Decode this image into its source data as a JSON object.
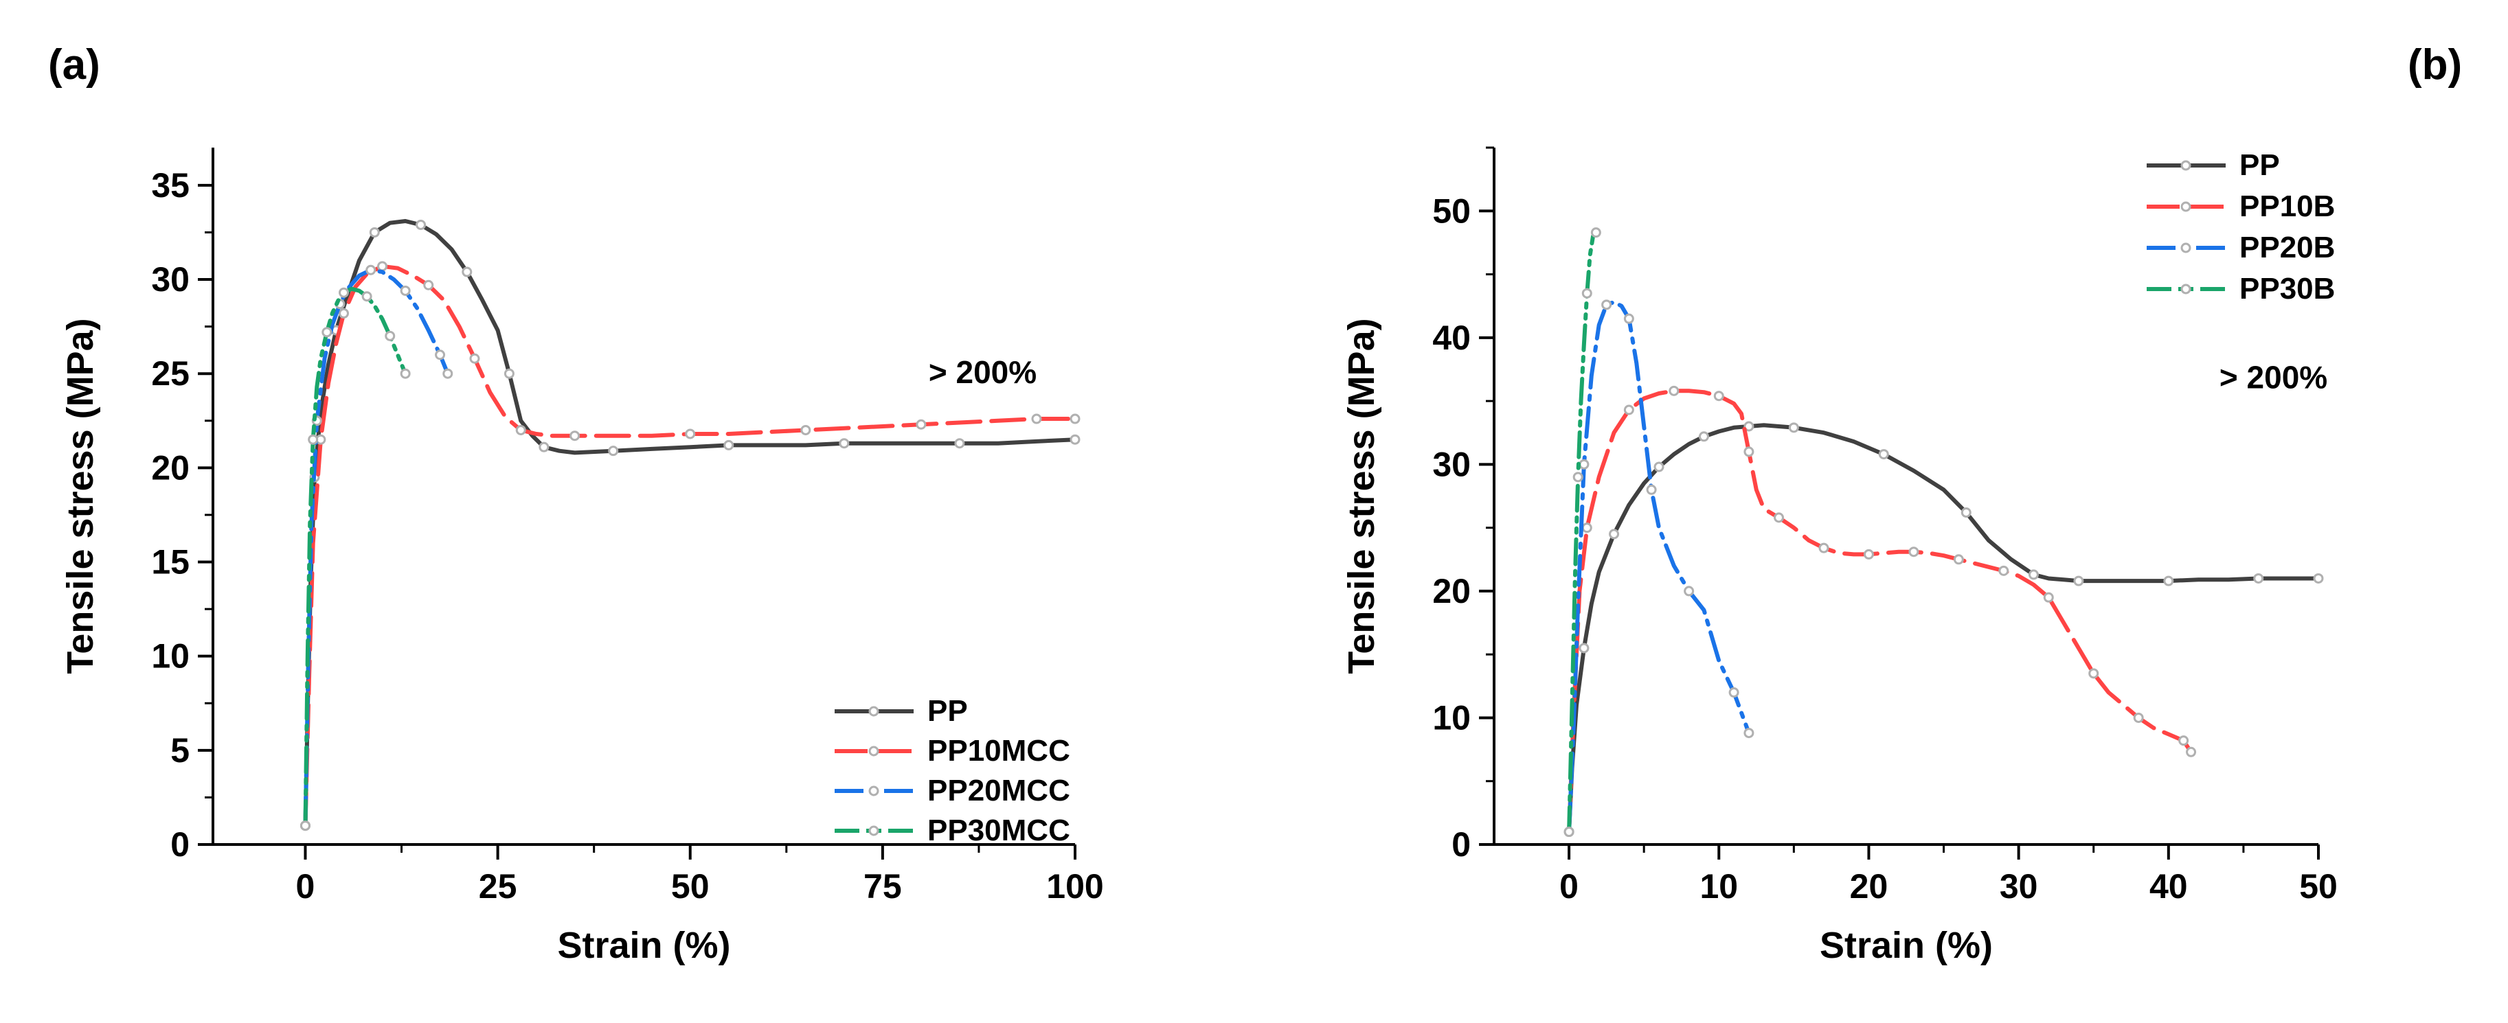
{
  "panel_labels": [
    "(a)",
    "(b)"
  ],
  "chart_data": [
    {
      "type": "line",
      "panel": "(a)",
      "xlabel": "Strain (%)",
      "ylabel": "Tensile stress (MPa)",
      "xlim": [
        -12,
        100
      ],
      "ylim": [
        0,
        37
      ],
      "xticks": [
        0,
        25,
        50,
        75,
        100
      ],
      "yticks": [
        0,
        5,
        10,
        15,
        20,
        25,
        30,
        35
      ],
      "annotation": "> 200%",
      "legend_position": "bottom-right",
      "series": [
        {
          "name": "PP",
          "color": "#404040",
          "dash": "solid",
          "x": [
            0,
            0.3,
            0.7,
            1.2,
            2,
            3,
            4,
            5.5,
            7,
            9,
            11,
            13,
            15,
            17,
            19,
            21,
            23,
            25,
            26.5,
            28,
            29.5,
            31,
            33,
            35,
            40,
            45,
            50,
            55,
            60,
            65,
            70,
            75,
            80,
            85,
            90,
            95,
            100
          ],
          "y": [
            1,
            7,
            14,
            19.5,
            23,
            25.5,
            27.3,
            29.2,
            31,
            32.5,
            33,
            33.1,
            32.9,
            32.4,
            31.6,
            30.4,
            28.9,
            27.3,
            25,
            22.5,
            21.7,
            21.1,
            20.9,
            20.8,
            20.9,
            21,
            21.1,
            21.2,
            21.2,
            21.2,
            21.3,
            21.3,
            21.3,
            21.3,
            21.3,
            21.4,
            21.5
          ]
        },
        {
          "name": "PP10MCC",
          "color": "#ff4444",
          "dash": "longdash",
          "x": [
            0,
            0.5,
            1,
            2,
            3,
            4,
            5,
            6.5,
            8,
            10,
            12,
            14,
            16,
            18,
            20,
            22,
            24,
            26,
            28,
            30,
            32,
            35,
            40,
            45,
            50,
            55,
            60,
            65,
            70,
            75,
            80,
            85,
            90,
            95,
            100
          ],
          "y": [
            1,
            9,
            16,
            21.5,
            24.5,
            26.6,
            28.2,
            29.6,
            30.3,
            30.7,
            30.6,
            30.2,
            29.7,
            28.9,
            27.5,
            25.8,
            24,
            22.7,
            22,
            21.8,
            21.7,
            21.7,
            21.7,
            21.7,
            21.8,
            21.8,
            21.9,
            22,
            22.1,
            22.2,
            22.3,
            22.4,
            22.5,
            22.6,
            22.6
          ]
        },
        {
          "name": "PP20MCC",
          "color": "#1a73e8",
          "dash": "dashdot",
          "x": [
            0,
            0.4,
            0.8,
            1.5,
            2.5,
            3.5,
            4.5,
            5.5,
            7,
            8.5,
            10,
            11.5,
            13,
            14.5,
            16,
            17.5,
            18.5
          ],
          "y": [
            1,
            10,
            17,
            22.5,
            25.8,
            27.6,
            28.7,
            29.5,
            30.2,
            30.5,
            30.4,
            30,
            29.4,
            28.5,
            27.3,
            26,
            25
          ]
        },
        {
          "name": "PP30MCC",
          "color": "#1aa56a",
          "dash": "dashdotdot",
          "x": [
            0,
            0.3,
            0.6,
            1,
            1.5,
            2,
            2.8,
            3.5,
            4.3,
            5,
            6,
            7,
            8,
            9,
            10,
            11,
            12,
            13
          ],
          "y": [
            1,
            10,
            17,
            21.5,
            24.3,
            25.8,
            27.2,
            28.2,
            28.9,
            29.3,
            29.5,
            29.4,
            29.1,
            28.6,
            27.9,
            27,
            26,
            25
          ]
        }
      ],
      "legend": [
        "PP",
        "PP10MCC",
        "PP20MCC",
        "PP30MCC"
      ]
    },
    {
      "type": "line",
      "panel": "(b)",
      "xlabel": "Strain (%)",
      "ylabel": "Tensile stress (MPa)",
      "xlim": [
        -5,
        50
      ],
      "ylim": [
        0,
        55
      ],
      "xticks": [
        0,
        10,
        20,
        30,
        40,
        50
      ],
      "yticks": [
        0,
        10,
        20,
        30,
        40,
        50
      ],
      "annotation": "> 200%",
      "legend_position": "top-right",
      "series": [
        {
          "name": "PP",
          "color": "#404040",
          "dash": "solid",
          "x": [
            0,
            0.2,
            0.5,
            1,
            1.5,
            2,
            3,
            4,
            5,
            6,
            7,
            8,
            9,
            10,
            11,
            12,
            13,
            14,
            15,
            17,
            19,
            21,
            23,
            25,
            26.5,
            28,
            29.5,
            31,
            32,
            33,
            34,
            36,
            38,
            40,
            42,
            44,
            46,
            48,
            50
          ],
          "y": [
            1,
            6,
            11,
            15.5,
            19,
            21.5,
            24.5,
            26.8,
            28.5,
            29.8,
            30.8,
            31.6,
            32.2,
            32.6,
            32.9,
            33,
            33.1,
            33,
            32.9,
            32.5,
            31.8,
            30.8,
            29.5,
            28,
            26.2,
            24,
            22.5,
            21.3,
            21,
            20.9,
            20.8,
            20.8,
            20.8,
            20.8,
            20.9,
            20.9,
            21,
            21,
            21
          ]
        },
        {
          "name": "PP10B",
          "color": "#ff4444",
          "dash": "longdash",
          "x": [
            0,
            0.3,
            0.7,
            1.2,
            2,
            3,
            4,
            5,
            6,
            7,
            8,
            9,
            10,
            11,
            11.5,
            12,
            12.5,
            13,
            14,
            15,
            16,
            17,
            18,
            19,
            20,
            21,
            22,
            23,
            24,
            25,
            26,
            27,
            28,
            29,
            30,
            31,
            32,
            33,
            34,
            35,
            36,
            37,
            38,
            39,
            40,
            41,
            41.5
          ],
          "y": [
            1,
            10,
            20,
            25,
            29,
            32.5,
            34.3,
            35.2,
            35.6,
            35.8,
            35.8,
            35.7,
            35.4,
            34.8,
            34,
            31,
            28,
            26.5,
            25.8,
            25,
            24,
            23.4,
            23,
            22.9,
            22.9,
            23,
            23.1,
            23.1,
            23,
            22.8,
            22.5,
            22.2,
            21.9,
            21.6,
            21.2,
            20.5,
            19.5,
            17.5,
            15.5,
            13.5,
            12,
            11,
            10,
            9.2,
            8.7,
            8.2,
            7.3
          ]
        },
        {
          "name": "PP20B",
          "color": "#1a73e8",
          "dash": "dashdot",
          "x": [
            0,
            0.3,
            0.6,
            1,
            1.5,
            2,
            2.5,
            3,
            3.5,
            4,
            4.5,
            5,
            5.5,
            6,
            7,
            8,
            9,
            10,
            11,
            12
          ],
          "y": [
            1,
            9,
            19,
            30,
            37,
            41,
            42.6,
            42.8,
            42.5,
            41.5,
            38,
            33,
            28,
            25,
            22,
            20,
            18.5,
            14.5,
            12,
            8.8
          ]
        },
        {
          "name": "PP30B",
          "color": "#1aa56a",
          "dash": "dashdotdot",
          "x": [
            0,
            0.2,
            0.4,
            0.6,
            0.8,
            1,
            1.2,
            1.4,
            1.6,
            1.8
          ],
          "y": [
            1,
            11,
            21,
            29,
            35,
            39.5,
            43.5,
            46.5,
            48,
            48.3
          ]
        }
      ],
      "legend": [
        "PP",
        "PP10B",
        "PP20B",
        "PP30B"
      ]
    }
  ]
}
